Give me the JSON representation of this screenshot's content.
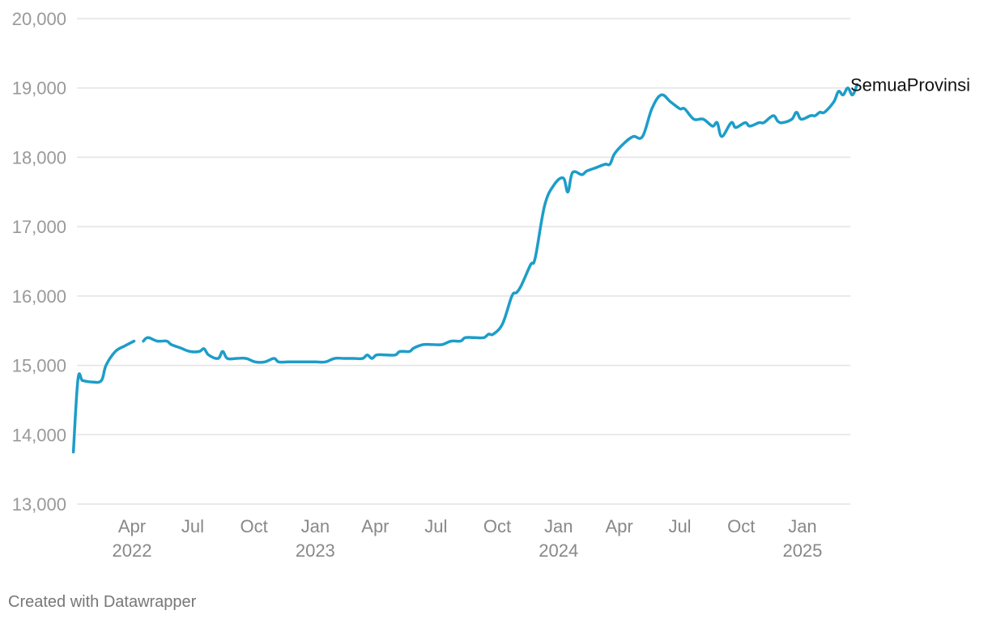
{
  "chart_data": {
    "type": "line",
    "title": "",
    "xlabel": "",
    "ylabel": "",
    "ylim": [
      13000,
      20000
    ],
    "y_ticks": [
      "13,000",
      "14,000",
      "15,000",
      "16,000",
      "17,000",
      "18,000",
      "19,000",
      "20,000"
    ],
    "y_tick_values": [
      13000,
      14000,
      15000,
      16000,
      17000,
      18000,
      19000,
      20000
    ],
    "x_ticks": [
      {
        "date": "2022-04-01",
        "label": "Apr",
        "year": "2022"
      },
      {
        "date": "2022-07-01",
        "label": "Jul",
        "year": ""
      },
      {
        "date": "2022-10-01",
        "label": "Oct",
        "year": ""
      },
      {
        "date": "2023-01-01",
        "label": "Jan",
        "year": "2023"
      },
      {
        "date": "2023-04-01",
        "label": "Apr",
        "year": ""
      },
      {
        "date": "2023-07-01",
        "label": "Jul",
        "year": ""
      },
      {
        "date": "2023-10-01",
        "label": "Oct",
        "year": ""
      },
      {
        "date": "2024-01-01",
        "label": "Jan",
        "year": "2024"
      },
      {
        "date": "2024-04-01",
        "label": "Apr",
        "year": ""
      },
      {
        "date": "2024-07-01",
        "label": "Jul",
        "year": ""
      },
      {
        "date": "2024-10-01",
        "label": "Oct",
        "year": ""
      },
      {
        "date": "2025-01-01",
        "label": "Jan",
        "year": "2025"
      }
    ],
    "grid": true,
    "series": [
      {
        "name": "SemuaProvinsi",
        "color": "#1d9dc9",
        "segments": [
          [
            [
              "2022-01-03",
              13750
            ],
            [
              "2022-01-10",
              14800
            ],
            [
              "2022-01-17",
              14780
            ],
            [
              "2022-01-31",
              14760
            ],
            [
              "2022-02-14",
              14780
            ],
            [
              "2022-02-21",
              15000
            ],
            [
              "2022-03-07",
              15200
            ],
            [
              "2022-03-21",
              15280
            ],
            [
              "2022-04-04",
              15350
            ]
          ],
          [
            [
              "2022-04-18",
              15350
            ],
            [
              "2022-04-25",
              15400
            ],
            [
              "2022-05-09",
              15350
            ],
            [
              "2022-05-23",
              15350
            ],
            [
              "2022-05-30",
              15300
            ],
            [
              "2022-06-13",
              15250
            ],
            [
              "2022-06-27",
              15200
            ],
            [
              "2022-07-11",
              15200
            ],
            [
              "2022-07-18",
              15240
            ],
            [
              "2022-07-25",
              15150
            ],
            [
              "2022-08-08",
              15100
            ],
            [
              "2022-08-15",
              15200
            ],
            [
              "2022-08-22",
              15100
            ],
            [
              "2022-09-05",
              15100
            ],
            [
              "2022-09-19",
              15100
            ],
            [
              "2022-10-03",
              15050
            ],
            [
              "2022-10-17",
              15050
            ],
            [
              "2022-10-31",
              15100
            ],
            [
              "2022-11-07",
              15050
            ],
            [
              "2022-11-21",
              15050
            ],
            [
              "2022-12-05",
              15050
            ],
            [
              "2022-12-19",
              15050
            ],
            [
              "2023-01-02",
              15050
            ],
            [
              "2023-01-16",
              15050
            ],
            [
              "2023-01-30",
              15100
            ],
            [
              "2023-02-13",
              15100
            ],
            [
              "2023-02-27",
              15100
            ],
            [
              "2023-03-13",
              15100
            ],
            [
              "2023-03-20",
              15150
            ],
            [
              "2023-03-27",
              15100
            ],
            [
              "2023-04-03",
              15150
            ],
            [
              "2023-04-17",
              15150
            ],
            [
              "2023-05-01",
              15150
            ],
            [
              "2023-05-08",
              15200
            ],
            [
              "2023-05-22",
              15200
            ],
            [
              "2023-05-29",
              15250
            ],
            [
              "2023-06-12",
              15300
            ],
            [
              "2023-06-26",
              15300
            ],
            [
              "2023-07-10",
              15300
            ],
            [
              "2023-07-24",
              15350
            ],
            [
              "2023-08-07",
              15350
            ],
            [
              "2023-08-14",
              15400
            ],
            [
              "2023-08-28",
              15400
            ],
            [
              "2023-09-11",
              15400
            ],
            [
              "2023-09-18",
              15450
            ],
            [
              "2023-09-25",
              15450
            ],
            [
              "2023-10-09",
              15600
            ],
            [
              "2023-10-23",
              16000
            ],
            [
              "2023-10-30",
              16050
            ],
            [
              "2023-11-06",
              16150
            ],
            [
              "2023-11-20",
              16450
            ],
            [
              "2023-11-27",
              16550
            ],
            [
              "2023-12-11",
              17300
            ],
            [
              "2023-12-25",
              17600
            ],
            [
              "2024-01-08",
              17700
            ],
            [
              "2024-01-15",
              17500
            ],
            [
              "2024-01-22",
              17780
            ],
            [
              "2024-02-05",
              17750
            ],
            [
              "2024-02-12",
              17800
            ],
            [
              "2024-02-26",
              17850
            ],
            [
              "2024-03-11",
              17900
            ],
            [
              "2024-03-18",
              17900
            ],
            [
              "2024-03-25",
              18050
            ],
            [
              "2024-04-08",
              18200
            ],
            [
              "2024-04-22",
              18300
            ],
            [
              "2024-05-06",
              18300
            ],
            [
              "2024-05-20",
              18700
            ],
            [
              "2024-06-03",
              18900
            ],
            [
              "2024-06-17",
              18800
            ],
            [
              "2024-07-01",
              18700
            ],
            [
              "2024-07-08",
              18700
            ],
            [
              "2024-07-22",
              18550
            ],
            [
              "2024-08-05",
              18550
            ],
            [
              "2024-08-19",
              18450
            ],
            [
              "2024-08-26",
              18500
            ],
            [
              "2024-09-02",
              18300
            ],
            [
              "2024-09-16",
              18500
            ],
            [
              "2024-09-23",
              18430
            ],
            [
              "2024-10-07",
              18500
            ],
            [
              "2024-10-14",
              18450
            ],
            [
              "2024-10-28",
              18500
            ],
            [
              "2024-11-04",
              18500
            ],
            [
              "2024-11-18",
              18600
            ],
            [
              "2024-11-25",
              18520
            ],
            [
              "2024-12-02",
              18500
            ],
            [
              "2024-12-16",
              18550
            ],
            [
              "2024-12-23",
              18650
            ],
            [
              "2024-12-30",
              18550
            ],
            [
              "2025-01-13",
              18600
            ],
            [
              "2025-01-20",
              18600
            ],
            [
              "2025-01-27",
              18650
            ],
            [
              "2025-02-03",
              18650
            ],
            [
              "2025-02-17",
              18800
            ],
            [
              "2025-02-24",
              18950
            ],
            [
              "2025-03-03",
              18900
            ],
            [
              "2025-03-10",
              19000
            ],
            [
              "2025-03-17",
              18900
            ],
            [
              "2025-03-24",
              19050
            ]
          ]
        ]
      }
    ]
  },
  "footer": {
    "credit": "Created with Datawrapper"
  }
}
